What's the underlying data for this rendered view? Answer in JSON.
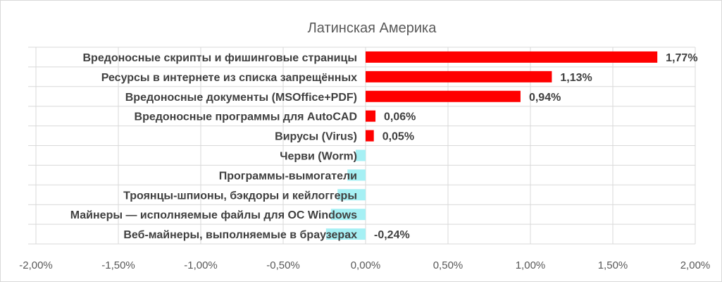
{
  "chart_data": {
    "type": "bar",
    "orientation": "horizontal",
    "title": "Латинская Америка",
    "xlabel": "",
    "ylabel": "",
    "xlim": [
      -0.02,
      0.02
    ],
    "x_ticks": [
      "-2,00%",
      "-1,50%",
      "-1,00%",
      "-0,50%",
      "0,00%",
      "0,50%",
      "1,00%",
      "1,50%",
      "2,00%"
    ],
    "x_tick_values": [
      -0.02,
      -0.015,
      -0.01,
      -0.005,
      0,
      0.005,
      0.01,
      0.015,
      0.02
    ],
    "grid": true,
    "legend": "none",
    "categories": [
      "Вредоносные скрипты и фишинговые страницы",
      "Ресурсы в интернете из списка запрещённых",
      "Вредоносные документы (MSOffice+PDF)",
      "Вредоносные программы для AutoCAD",
      "Вирусы (Virus)",
      "Черви (Worm)",
      "Программы-вымогатели",
      "Троянцы-шпионы, бэкдоры и кейлоггеры",
      "Майнеры — исполняемые файлы для ОС Windows",
      "Веб-майнеры, выполняемые в браузерах"
    ],
    "values": [
      0.0177,
      0.0113,
      0.0094,
      0.0006,
      0.0005,
      -0.0006,
      -0.0011,
      -0.0017,
      -0.0021,
      -0.0024
    ],
    "data_labels": [
      "1,77%",
      "1,13%",
      "0,94%",
      "0,06%",
      "0,05%",
      "",
      "",
      "",
      "",
      "-0,24%"
    ],
    "colors": {
      "positive": "#ff0000",
      "negative": "#a6f0f4"
    }
  }
}
